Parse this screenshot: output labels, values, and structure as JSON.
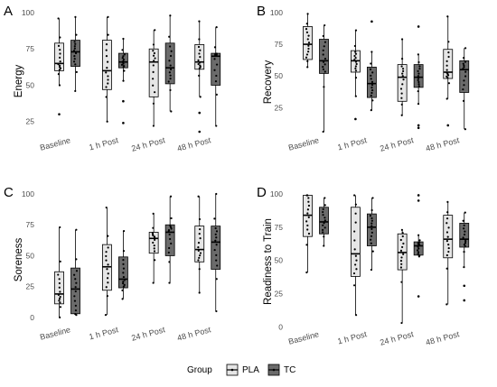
{
  "legend": {
    "title": "Group",
    "items": [
      {
        "label": "PLA",
        "fill": "#e6e6e6"
      },
      {
        "label": "TC",
        "fill": "#6b6b6b"
      }
    ]
  },
  "chart_data": [
    {
      "type": "box",
      "panel_letter": "A",
      "ylabel": "Energy",
      "ylim": [
        18,
        100
      ],
      "yticks": [
        25,
        50,
        75,
        100
      ],
      "categories": [
        "Baseline",
        "1 h Post",
        "24 h Post",
        "48 h Post"
      ],
      "series": [
        {
          "name": "PLA",
          "boxes": [
            {
              "min": 50,
              "q1": 60,
              "median": 65,
              "q3": 79,
              "max": 96,
              "outliers": [
                30
              ]
            },
            {
              "min": 25,
              "q1": 47,
              "median": 60,
              "q3": 81,
              "max": 97,
              "outliers": []
            },
            {
              "min": 22,
              "q1": 42,
              "median": 66,
              "q3": 75,
              "max": 88,
              "outliers": []
            },
            {
              "min": 42,
              "q1": 61,
              "median": 66,
              "q3": 78,
              "max": 94,
              "outliers": [
                31,
                18
              ]
            }
          ]
        },
        {
          "name": "TC",
          "boxes": [
            {
              "min": 46,
              "q1": 63,
              "median": 73,
              "q3": 81,
              "max": 97,
              "outliers": []
            },
            {
              "min": 53,
              "q1": 62,
              "median": 66,
              "q3": 72,
              "max": 82,
              "outliers": [
                39,
                24
              ]
            },
            {
              "min": 32,
              "q1": 51,
              "median": 62,
              "q3": 79,
              "max": 98,
              "outliers": []
            },
            {
              "min": 22,
              "q1": 50,
              "median": 70,
              "q3": 72,
              "max": 90,
              "outliers": []
            }
          ]
        }
      ]
    },
    {
      "type": "box",
      "panel_letter": "B",
      "ylabel": "Recovery",
      "ylim": [
        6,
        100
      ],
      "yticks": [
        25,
        50,
        75,
        100
      ],
      "categories": [
        "Baseline",
        "1 h Post",
        "24 h Post",
        "48 h Post"
      ],
      "series": [
        {
          "name": "PLA",
          "boxes": [
            {
              "min": 57,
              "q1": 63,
              "median": 75,
              "q3": 89,
              "max": 99,
              "outliers": []
            },
            {
              "min": 34,
              "q1": 53,
              "median": 62,
              "q3": 70,
              "max": 86,
              "outliers": [
                16
              ]
            },
            {
              "min": 19,
              "q1": 30,
              "median": 49,
              "q3": 59,
              "max": 79,
              "outliers": []
            },
            {
              "min": 32,
              "q1": 48,
              "median": 53,
              "q3": 71,
              "max": 97,
              "outliers": [
                11
              ]
            }
          ]
        },
        {
          "name": "TC",
          "boxes": [
            {
              "min": 6,
              "q1": 52,
              "median": 62,
              "q3": 79,
              "max": 90,
              "outliers": []
            },
            {
              "min": 23,
              "q1": 33,
              "median": 44,
              "q3": 57,
              "max": 69,
              "outliers": [
                93
              ]
            },
            {
              "min": 28,
              "q1": 41,
              "median": 49,
              "q3": 59,
              "max": 67,
              "outliers": [
                89,
                11,
                9
              ]
            },
            {
              "min": 8,
              "q1": 37,
              "median": 55,
              "q3": 62,
              "max": 72,
              "outliers": []
            }
          ]
        }
      ]
    },
    {
      "type": "box",
      "panel_letter": "C",
      "ylabel": "Soreness",
      "ylim": [
        -3,
        100
      ],
      "yticks": [
        0,
        25,
        50,
        75,
        100
      ],
      "categories": [
        "Baseline",
        "1 h Post",
        "24 h Post",
        "48 h Post"
      ],
      "series": [
        {
          "name": "PLA",
          "boxes": [
            {
              "min": 0,
              "q1": 11,
              "median": 19,
              "q3": 37,
              "max": 73,
              "outliers": []
            },
            {
              "min": 2,
              "q1": 22,
              "median": 41,
              "q3": 59,
              "max": 89,
              "outliers": []
            },
            {
              "min": 28,
              "q1": 52,
              "median": 64,
              "q3": 69,
              "max": 84,
              "outliers": []
            },
            {
              "min": 20,
              "q1": 45,
              "median": 55,
              "q3": 74,
              "max": 98,
              "outliers": []
            }
          ]
        },
        {
          "name": "TC",
          "boxes": [
            {
              "min": 2,
              "q1": 3,
              "median": 23,
              "q3": 40,
              "max": 71,
              "outliers": []
            },
            {
              "min": 15,
              "q1": 24,
              "median": 31,
              "q3": 49,
              "max": 70,
              "outliers": []
            },
            {
              "min": 28,
              "q1": 50,
              "median": 69,
              "q3": 75,
              "max": 98,
              "outliers": []
            },
            {
              "min": 5,
              "q1": 39,
              "median": 61,
              "q3": 74,
              "max": 100,
              "outliers": []
            }
          ]
        }
      ]
    },
    {
      "type": "box",
      "panel_letter": "D",
      "ylabel": "Readiness to Train",
      "ylim": [
        1,
        100
      ],
      "yticks": [
        0,
        25,
        50,
        75,
        100
      ],
      "categories": [
        "Baseline",
        "1 h Post",
        "24 h Post",
        "48 h Post"
      ],
      "series": [
        {
          "name": "PLA",
          "boxes": [
            {
              "min": 41,
              "q1": 68,
              "median": 84,
              "q3": 99,
              "max": 99,
              "outliers": []
            },
            {
              "min": 9,
              "q1": 38,
              "median": 55,
              "q3": 90,
              "max": 99,
              "outliers": []
            },
            {
              "min": 3,
              "q1": 43,
              "median": 56,
              "q3": 70,
              "max": 73,
              "outliers": []
            },
            {
              "min": 17,
              "q1": 52,
              "median": 66,
              "q3": 84,
              "max": 94,
              "outliers": []
            }
          ]
        },
        {
          "name": "TC",
          "boxes": [
            {
              "min": 61,
              "q1": 70,
              "median": 79,
              "q3": 90,
              "max": 97,
              "outliers": []
            },
            {
              "min": 43,
              "q1": 61,
              "median": 75,
              "q3": 85,
              "max": 97,
              "outliers": []
            },
            {
              "min": 53,
              "q1": 54,
              "median": 61,
              "q3": 64,
              "max": 69,
              "outliers": [
                99,
                95,
                23
              ]
            },
            {
              "min": 45,
              "q1": 60,
              "median": 66,
              "q3": 78,
              "max": 86,
              "outliers": [
                31,
                20
              ]
            }
          ]
        }
      ]
    }
  ]
}
